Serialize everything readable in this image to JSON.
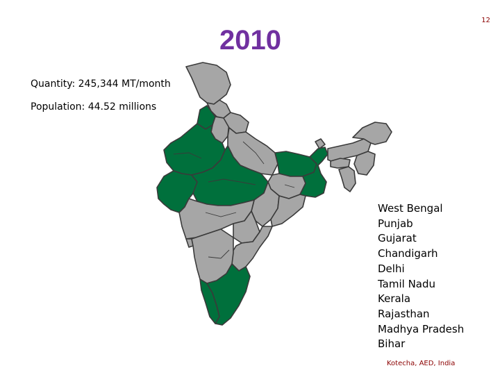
{
  "slide": {
    "page_number": "12",
    "title": "2010",
    "quantity_text": "Quantity: 245,344 MT/month",
    "population_text": "Population: 44.52 millions",
    "source": "Kotecha, AED, India"
  },
  "map": {
    "highlight_color": "#00703C",
    "base_color": "#A6A6A6",
    "highlighted_states": [
      "West Bengal",
      "Punjab",
      "Gujarat",
      "Chandigarh",
      "Delhi",
      "Tamil Nadu",
      "Kerala",
      "Rajasthan",
      "Madhya Pradesh",
      "Bihar"
    ]
  },
  "legend": {
    "items": [
      "West Bengal",
      "Punjab",
      "Gujarat",
      "Chandigarh",
      "Delhi",
      "Tamil Nadu",
      "Kerala",
      "Rajasthan",
      "Madhya Pradesh",
      "Bihar"
    ]
  },
  "colors": {
    "title": "#7030A0",
    "page_number": "#8B0000",
    "source": "#8B0000"
  }
}
